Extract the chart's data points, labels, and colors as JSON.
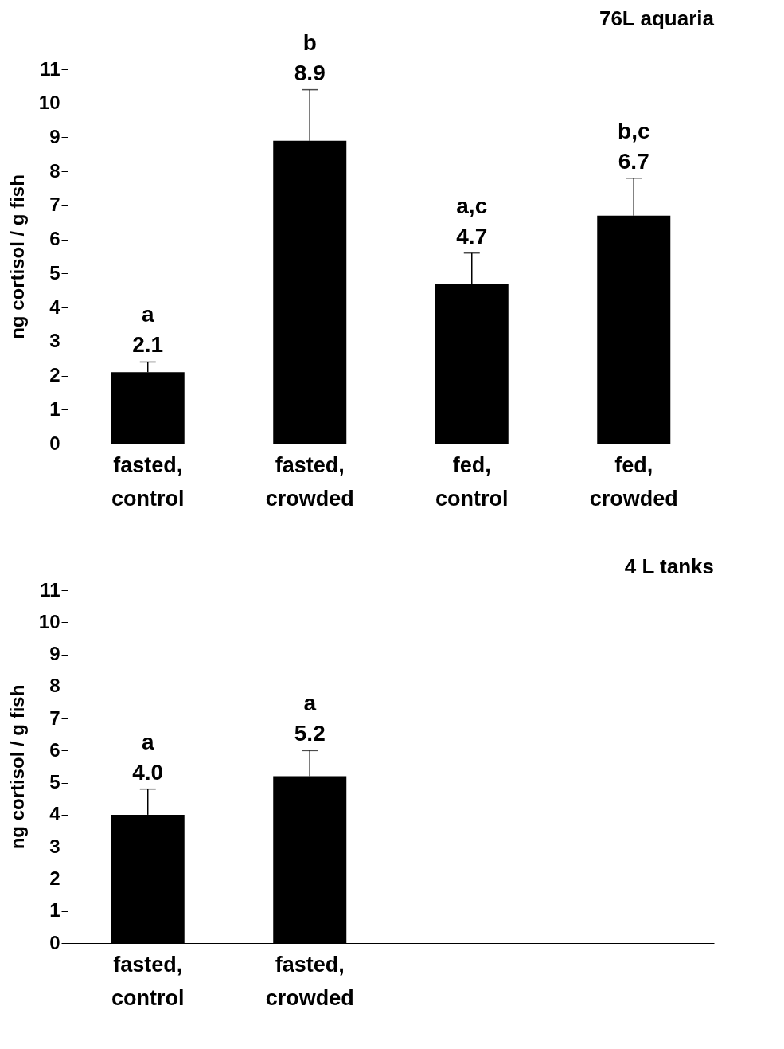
{
  "chart_data": [
    {
      "type": "bar",
      "title": "76L aquaria",
      "ylabel": "ng cortisol / g fish",
      "categories": [
        "fasted, control",
        "fasted, crowded",
        "fed, control",
        "fed, crowded"
      ],
      "values": [
        2.1,
        8.9,
        4.7,
        6.7
      ],
      "color": "#000000",
      "errors": [
        [
          2.1,
          2.4
        ],
        [
          8.9,
          10.4
        ],
        [
          4.7,
          5.6
        ],
        [
          6.7,
          7.8
        ]
      ],
      "value_labels": [
        "2.1",
        "8.9",
        "4.7",
        "6.7"
      ],
      "ylim": [
        0,
        11
      ],
      "yticks": [
        0,
        1,
        2,
        3,
        4,
        5,
        6,
        7,
        8,
        9,
        10,
        11
      ],
      "annotations": [
        {
          "text": "a",
          "x": "fasted, control",
          "y": 2.4
        },
        {
          "text": "b",
          "x": "fasted, crowded",
          "y": 10.4
        },
        {
          "text": "a,c",
          "x": "fed, control",
          "y": 5.6
        },
        {
          "text": "b,c",
          "x": "fed, crowded",
          "y": 7.8
        }
      ]
    },
    {
      "type": "bar",
      "title": "4 L tanks",
      "ylabel": "ng cortisol / g fish",
      "categories": [
        "fasted, control",
        "fasted, crowded",
        null,
        null
      ],
      "values": [
        4.0,
        5.2,
        null,
        null
      ],
      "color": "#000000",
      "errors": [
        [
          4.0,
          4.8
        ],
        [
          5.2,
          6.0
        ],
        null,
        null
      ],
      "value_labels": [
        "4.0",
        "5.2",
        null,
        null
      ],
      "ylim": [
        0,
        11
      ],
      "yticks": [
        0,
        1,
        2,
        3,
        4,
        5,
        6,
        7,
        8,
        9,
        10,
        11
      ],
      "annotations": [
        {
          "text": "a",
          "x": "fasted, control",
          "y": 4.8
        },
        {
          "text": "a",
          "x": "fasted, crowded",
          "y": 6.0
        }
      ]
    }
  ]
}
